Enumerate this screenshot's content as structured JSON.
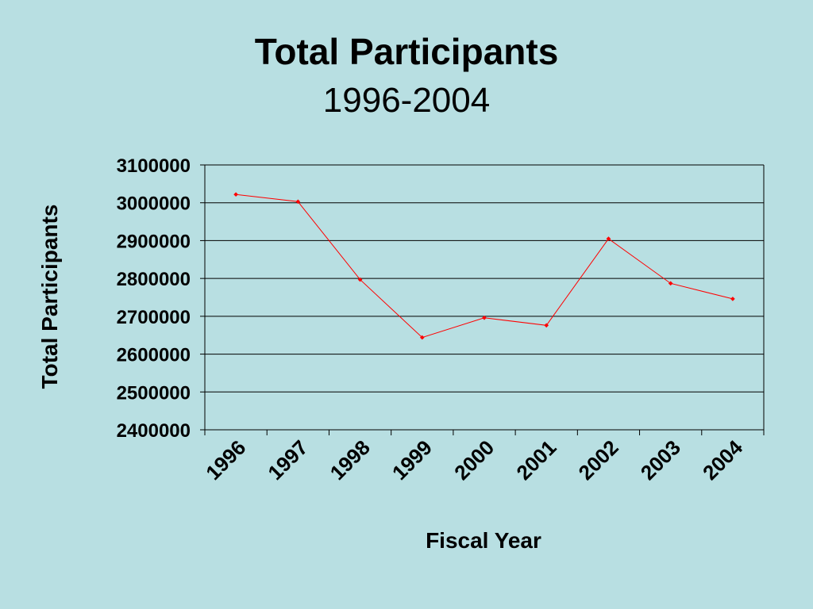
{
  "title": "Total Participants",
  "subtitle": "1996-2004",
  "colors": {
    "background": "#b8dfe2",
    "series": "#ff0000",
    "gridline": "#000000"
  },
  "chart_data": {
    "type": "line",
    "title": "Total Participants",
    "subtitle": "1996-2004",
    "xlabel": "Fiscal Year",
    "ylabel": "Total Participants",
    "categories": [
      "1996",
      "1997",
      "1998",
      "1999",
      "2000",
      "2001",
      "2002",
      "2003",
      "2004"
    ],
    "series": [
      {
        "values": [
          3022000,
          3003000,
          2797000,
          2644000,
          2696000,
          2676000,
          2905000,
          2787000,
          2746000
        ]
      }
    ],
    "ylim": [
      2400000,
      3100000
    ],
    "yticks": [
      "2400000",
      "2500000",
      "2600000",
      "2700000",
      "2800000",
      "2900000",
      "3000000",
      "3100000"
    ],
    "grid": true,
    "legend": "none"
  }
}
